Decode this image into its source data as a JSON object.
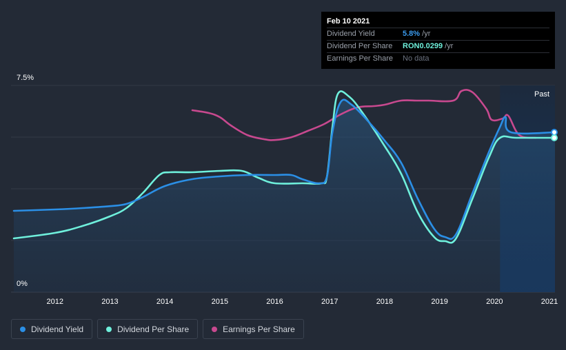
{
  "tooltip": {
    "date": "Feb 10 2021",
    "rows": [
      {
        "label": "Dividend Yield",
        "value": "5.8%",
        "suffix": " /yr",
        "color": "#3b9cf0"
      },
      {
        "label": "Dividend Per Share",
        "value": "RON0.0299",
        "suffix": " /yr",
        "color": "#6ff0dc"
      },
      {
        "label": "Earnings Per Share",
        "value": "No data",
        "suffix": "",
        "color": "#6b7280"
      }
    ]
  },
  "colors": {
    "background": "#232a36",
    "dividend_yield": "#2b8fe6",
    "dividend_per_share": "#6ff0dc",
    "earnings_per_share": "#c8498f",
    "past_shade": "#1a3556"
  },
  "chart_data": {
    "type": "line",
    "title": "",
    "xlabel": "",
    "ylabel": "",
    "ylim": [
      0,
      7.5
    ],
    "y_ticks": [
      "0%",
      "7.5%"
    ],
    "x_ticks": [
      "2012",
      "2013",
      "2014",
      "2015",
      "2016",
      "2017",
      "2018",
      "2019",
      "2020",
      "2021"
    ],
    "xlim": [
      2011.2,
      2021.1
    ],
    "past_start": 2020.1,
    "past_label": "Past",
    "grid": true,
    "legend_position": "bottom-left",
    "series": [
      {
        "name": "Dividend Yield",
        "points": [
          [
            2011.25,
            2.95
          ],
          [
            2012.0,
            3.0
          ],
          [
            2012.5,
            3.05
          ],
          [
            2013.0,
            3.12
          ],
          [
            2013.3,
            3.2
          ],
          [
            2013.6,
            3.45
          ],
          [
            2014.0,
            3.85
          ],
          [
            2014.5,
            4.1
          ],
          [
            2015.0,
            4.2
          ],
          [
            2015.5,
            4.25
          ],
          [
            2016.0,
            4.25
          ],
          [
            2016.3,
            4.25
          ],
          [
            2016.5,
            4.1
          ],
          [
            2016.8,
            3.95
          ],
          [
            2016.95,
            4.2
          ],
          [
            2017.05,
            5.8
          ],
          [
            2017.2,
            6.9
          ],
          [
            2017.4,
            6.8
          ],
          [
            2017.7,
            6.2
          ],
          [
            2018.0,
            5.5
          ],
          [
            2018.3,
            4.7
          ],
          [
            2018.6,
            3.4
          ],
          [
            2018.9,
            2.3
          ],
          [
            2019.1,
            2.0
          ],
          [
            2019.3,
            2.1
          ],
          [
            2019.6,
            3.6
          ],
          [
            2019.9,
            5.1
          ],
          [
            2020.1,
            6.0
          ],
          [
            2020.2,
            6.35
          ],
          [
            2020.3,
            5.8
          ],
          [
            2021.1,
            5.8
          ]
        ]
      },
      {
        "name": "Dividend Per Share",
        "points": [
          [
            2011.25,
            1.95
          ],
          [
            2012.0,
            2.15
          ],
          [
            2012.5,
            2.4
          ],
          [
            2013.0,
            2.75
          ],
          [
            2013.3,
            3.05
          ],
          [
            2013.6,
            3.6
          ],
          [
            2013.9,
            4.25
          ],
          [
            2014.1,
            4.35
          ],
          [
            2014.5,
            4.35
          ],
          [
            2015.0,
            4.4
          ],
          [
            2015.4,
            4.4
          ],
          [
            2015.7,
            4.15
          ],
          [
            2016.0,
            3.95
          ],
          [
            2016.5,
            3.95
          ],
          [
            2016.85,
            3.95
          ],
          [
            2016.95,
            4.2
          ],
          [
            2017.05,
            6.0
          ],
          [
            2017.15,
            7.2
          ],
          [
            2017.35,
            7.1
          ],
          [
            2017.6,
            6.5
          ],
          [
            2018.0,
            5.3
          ],
          [
            2018.3,
            4.3
          ],
          [
            2018.6,
            2.9
          ],
          [
            2018.9,
            2.0
          ],
          [
            2019.1,
            1.85
          ],
          [
            2019.3,
            1.95
          ],
          [
            2019.6,
            3.4
          ],
          [
            2019.9,
            4.9
          ],
          [
            2020.1,
            5.6
          ],
          [
            2020.4,
            5.6
          ],
          [
            2021.1,
            5.6
          ]
        ]
      },
      {
        "name": "Earnings Per Share",
        "points": [
          [
            2014.5,
            6.6
          ],
          [
            2014.8,
            6.5
          ],
          [
            2015.0,
            6.35
          ],
          [
            2015.2,
            6.05
          ],
          [
            2015.5,
            5.7
          ],
          [
            2015.8,
            5.55
          ],
          [
            2016.0,
            5.52
          ],
          [
            2016.3,
            5.62
          ],
          [
            2016.6,
            5.85
          ],
          [
            2016.9,
            6.1
          ],
          [
            2017.2,
            6.45
          ],
          [
            2017.5,
            6.7
          ],
          [
            2017.8,
            6.75
          ],
          [
            2018.0,
            6.8
          ],
          [
            2018.3,
            6.95
          ],
          [
            2018.6,
            6.95
          ],
          [
            2018.8,
            6.95
          ],
          [
            2019.25,
            6.95
          ],
          [
            2019.4,
            7.3
          ],
          [
            2019.6,
            7.25
          ],
          [
            2019.85,
            6.65
          ],
          [
            2019.95,
            6.25
          ],
          [
            2020.15,
            6.3
          ],
          [
            2020.25,
            6.4
          ],
          [
            2020.45,
            5.7
          ],
          [
            2020.75,
            5.6
          ]
        ]
      }
    ]
  },
  "legend": [
    {
      "label": "Dividend Yield",
      "color": "#2b8fe6"
    },
    {
      "label": "Dividend Per Share",
      "color": "#6ff0dc"
    },
    {
      "label": "Earnings Per Share",
      "color": "#c8498f"
    }
  ]
}
